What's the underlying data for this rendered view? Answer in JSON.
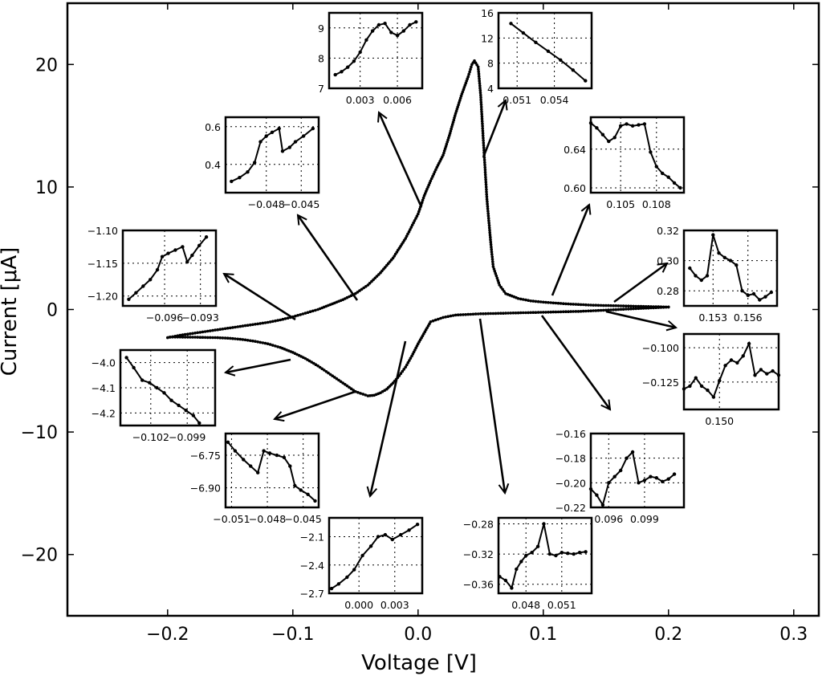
{
  "chart_data": {
    "type": "line",
    "title": "",
    "xlabel": "Voltage [V]",
    "ylabel": "Current [μA]",
    "xlim": [
      -0.28,
      0.32
    ],
    "ylim": [
      -25,
      25
    ],
    "x_ticks": [
      -0.2,
      -0.1,
      0.0,
      0.1,
      0.2,
      0.3
    ],
    "x_tick_labels": [
      "−0.2",
      "−0.1",
      "0.0",
      "0.1",
      "0.2",
      "0.3"
    ],
    "y_ticks": [
      -20,
      -10,
      0,
      10,
      20
    ],
    "y_tick_labels": [
      "−20",
      "−10",
      "0",
      "10",
      "20"
    ],
    "grid": false,
    "legend": "none",
    "series": [
      {
        "x": [
          -0.2,
          -0.19,
          -0.18,
          -0.17,
          -0.16,
          -0.15,
          -0.14,
          -0.13,
          -0.12,
          -0.11,
          -0.1,
          -0.09,
          -0.08,
          -0.07,
          -0.06,
          -0.05,
          -0.04,
          -0.03,
          -0.02,
          -0.01,
          0.0,
          0.005,
          0.01,
          0.015,
          0.02,
          0.025,
          0.03,
          0.035,
          0.04,
          0.043,
          0.045,
          0.048,
          0.05,
          0.052,
          0.055,
          0.058,
          0.06,
          0.065,
          0.07,
          0.08,
          0.09,
          0.1,
          0.12,
          0.14,
          0.16,
          0.18,
          0.2,
          0.2,
          0.19,
          0.17,
          0.15,
          0.13,
          0.11,
          0.09,
          0.07,
          0.05,
          0.03,
          0.02,
          0.01,
          0.0,
          -0.005,
          -0.01,
          -0.015,
          -0.02,
          -0.025,
          -0.03,
          -0.035,
          -0.04,
          -0.05,
          -0.06,
          -0.07,
          -0.08,
          -0.09,
          -0.1,
          -0.11,
          -0.12,
          -0.13,
          -0.14,
          -0.15,
          -0.16,
          -0.17,
          -0.18,
          -0.19,
          -0.2
        ],
        "y": [
          -2.3,
          -2.1,
          -1.95,
          -1.8,
          -1.65,
          -1.5,
          -1.35,
          -1.2,
          -1.05,
          -0.85,
          -0.6,
          -0.3,
          0.0,
          0.4,
          0.8,
          1.3,
          2.0,
          3.0,
          4.2,
          5.8,
          7.8,
          9.3,
          10.5,
          11.6,
          12.6,
          14.2,
          16.0,
          17.6,
          19.0,
          20.0,
          20.3,
          19.8,
          17.5,
          14.0,
          9.0,
          5.5,
          3.5,
          2.0,
          1.3,
          0.9,
          0.7,
          0.6,
          0.45,
          0.35,
          0.3,
          0.25,
          0.2,
          0.2,
          0.15,
          0.05,
          -0.05,
          -0.15,
          -0.2,
          -0.25,
          -0.3,
          -0.35,
          -0.45,
          -0.65,
          -1.0,
          -2.8,
          -3.8,
          -4.7,
          -5.4,
          -6.0,
          -6.5,
          -6.8,
          -7.0,
          -7.05,
          -6.7,
          -6.0,
          -5.3,
          -4.6,
          -4.0,
          -3.5,
          -3.1,
          -2.8,
          -2.6,
          -2.45,
          -2.35,
          -2.3,
          -2.28,
          -2.26,
          -2.25,
          -2.25
        ]
      }
    ],
    "insets": [
      {
        "x_ticks": [
          0.003,
          0.006
        ],
        "x_tick_labels": [
          "0.003",
          "0.006"
        ],
        "y_ticks": [
          7,
          8,
          9
        ],
        "y_tick_labels": [
          "7",
          "8",
          "9"
        ],
        "xlim": [
          0.0005,
          0.008
        ],
        "ylim": [
          7,
          9.5
        ],
        "x": [
          0.001,
          0.0015,
          0.002,
          0.0025,
          0.003,
          0.0035,
          0.004,
          0.0045,
          0.005,
          0.0055,
          0.006,
          0.0065,
          0.007,
          0.0075
        ],
        "y": [
          7.45,
          7.55,
          7.7,
          7.9,
          8.2,
          8.6,
          8.9,
          9.1,
          9.15,
          8.85,
          8.75,
          8.9,
          9.1,
          9.2
        ]
      },
      {
        "x_ticks": [
          0.051,
          0.054
        ],
        "x_tick_labels": [
          "0.051",
          "0.054"
        ],
        "y_ticks": [
          4,
          8,
          12,
          16
        ],
        "y_tick_labels": [
          "4",
          "8",
          "12",
          "16"
        ],
        "xlim": [
          0.0495,
          0.057
        ],
        "ylim": [
          4,
          16
        ],
        "x": [
          0.0505,
          0.0515,
          0.0525,
          0.0535,
          0.0545,
          0.0555,
          0.0565
        ],
        "y": [
          14.3,
          12.8,
          11.3,
          9.9,
          8.5,
          6.9,
          5.2
        ]
      },
      {
        "x_ticks": [
          -0.048,
          -0.045
        ],
        "x_tick_labels": [
          "−0.048",
          "−0.045"
        ],
        "y_ticks": [
          0.4,
          0.6
        ],
        "y_tick_labels": [
          "0.4",
          "0.6"
        ],
        "xlim": [
          -0.0515,
          -0.0435
        ],
        "ylim": [
          0.25,
          0.65
        ],
        "x": [
          -0.051,
          -0.0503,
          -0.0496,
          -0.049,
          -0.0485,
          -0.048,
          -0.0475,
          -0.0469,
          -0.0466,
          -0.046,
          -0.0455,
          -0.0448,
          -0.044
        ],
        "y": [
          0.31,
          0.33,
          0.36,
          0.41,
          0.52,
          0.55,
          0.57,
          0.59,
          0.47,
          0.49,
          0.52,
          0.55,
          0.59
        ]
      },
      {
        "x_ticks": [
          0.105,
          0.108
        ],
        "x_tick_labels": [
          "0.105",
          "0.108"
        ],
        "y_ticks": [
          0.6,
          0.64
        ],
        "y_tick_labels": [
          "0.60",
          "0.64"
        ],
        "xlim": [
          0.1025,
          0.1103
        ],
        "ylim": [
          0.595,
          0.673
        ],
        "x": [
          0.1025,
          0.103,
          0.1035,
          0.104,
          0.1045,
          0.105,
          0.1055,
          0.106,
          0.1065,
          0.107,
          0.1075,
          0.108,
          0.1085,
          0.109,
          0.1095,
          0.11
        ],
        "y": [
          0.667,
          0.662,
          0.655,
          0.648,
          0.652,
          0.664,
          0.666,
          0.664,
          0.665,
          0.666,
          0.637,
          0.622,
          0.615,
          0.611,
          0.605,
          0.6
        ]
      },
      {
        "x_ticks": [
          -0.096,
          -0.093
        ],
        "x_tick_labels": [
          "−0.096",
          "−0.093"
        ],
        "y_ticks": [
          -1.2,
          -1.15,
          -1.1
        ],
        "y_tick_labels": [
          "−1.20",
          "−1.15",
          "−1.10"
        ],
        "xlim": [
          -0.0995,
          -0.0917
        ],
        "ylim": [
          -1.215,
          -1.1
        ],
        "x": [
          -0.099,
          -0.0984,
          -0.0978,
          -0.0972,
          -0.0966,
          -0.0962,
          -0.0957,
          -0.0951,
          -0.0945,
          -0.0941,
          -0.0937,
          -0.0931,
          -0.0925
        ],
        "y": [
          -1.205,
          -1.195,
          -1.185,
          -1.175,
          -1.16,
          -1.14,
          -1.135,
          -1.13,
          -1.125,
          -1.148,
          -1.138,
          -1.123,
          -1.11
        ]
      },
      {
        "x_ticks": [
          0.153,
          0.156
        ],
        "x_tick_labels": [
          "0.153",
          "0.156"
        ],
        "y_ticks": [
          0.28,
          0.3,
          0.32
        ],
        "y_tick_labels": [
          "0.28",
          "0.30",
          "0.32"
        ],
        "xlim": [
          0.1505,
          0.1585
        ],
        "ylim": [
          0.27,
          0.32
        ],
        "x": [
          0.151,
          0.1515,
          0.152,
          0.1525,
          0.153,
          0.1535,
          0.154,
          0.1545,
          0.155,
          0.1555,
          0.156,
          0.1565,
          0.157,
          0.1575,
          0.158
        ],
        "y": [
          0.295,
          0.29,
          0.287,
          0.29,
          0.317,
          0.305,
          0.302,
          0.3,
          0.297,
          0.28,
          0.277,
          0.278,
          0.274,
          0.276,
          0.279
        ]
      },
      {
        "x_ticks": [
          -0.102,
          -0.099
        ],
        "x_tick_labels": [
          "−0.102",
          "−0.099"
        ],
        "y_ticks": [
          -4.2,
          -4.1,
          -4.0
        ],
        "y_tick_labels": [
          "−4.2",
          "−4.1",
          "−4.0"
        ],
        "xlim": [
          -0.1045,
          -0.0967
        ],
        "ylim": [
          -4.25,
          -3.95
        ],
        "x": [
          -0.104,
          -0.1034,
          -0.1027,
          -0.1021,
          -0.1015,
          -0.1009,
          -0.1003,
          -0.0997,
          -0.0991,
          -0.0985,
          -0.098
        ],
        "y": [
          -3.98,
          -4.02,
          -4.07,
          -4.08,
          -4.1,
          -4.12,
          -4.15,
          -4.17,
          -4.19,
          -4.21,
          -4.24
        ]
      },
      {
        "x_ticks": [
          0.15
        ],
        "x_tick_labels": [
          "0.150"
        ],
        "y_ticks": [
          -0.125,
          -0.1
        ],
        "y_tick_labels": [
          "−0.125",
          "−0.100"
        ],
        "xlim": [
          0.147,
          0.155
        ],
        "ylim": [
          -0.145,
          -0.09
        ],
        "x": [
          0.147,
          0.1475,
          0.148,
          0.1485,
          0.149,
          0.1495,
          0.15,
          0.1505,
          0.151,
          0.1515,
          0.152,
          0.1525,
          0.153,
          0.1535,
          0.154,
          0.1545,
          0.155
        ],
        "y": [
          -0.13,
          -0.128,
          -0.122,
          -0.128,
          -0.131,
          -0.136,
          -0.124,
          -0.113,
          -0.109,
          -0.111,
          -0.106,
          -0.097,
          -0.12,
          -0.116,
          -0.119,
          -0.117,
          -0.12
        ]
      },
      {
        "x_ticks": [
          -0.051,
          -0.048,
          -0.045
        ],
        "x_tick_labels": [
          "−0.051",
          "−0.048",
          "−0.045"
        ],
        "y_ticks": [
          -6.9,
          -6.75
        ],
        "y_tick_labels": [
          "−6.90",
          "−6.75"
        ],
        "xlim": [
          -0.0515,
          -0.0437
        ],
        "ylim": [
          -6.99,
          -6.65
        ],
        "x": [
          -0.0513,
          -0.0507,
          -0.05,
          -0.0494,
          -0.0488,
          -0.0483,
          -0.0478,
          -0.0472,
          -0.0466,
          -0.0461,
          -0.0457,
          -0.0452,
          -0.0446,
          -0.044
        ],
        "y": [
          -6.69,
          -6.73,
          -6.77,
          -6.8,
          -6.83,
          -6.73,
          -6.74,
          -6.75,
          -6.76,
          -6.8,
          -6.89,
          -6.91,
          -6.93,
          -6.96
        ]
      },
      {
        "x_ticks": [
          0.096,
          0.099
        ],
        "x_tick_labels": [
          "0.096",
          "0.099"
        ],
        "y_ticks": [
          -0.22,
          -0.2,
          -0.18,
          -0.16
        ],
        "y_tick_labels": [
          "−0.22",
          "−0.20",
          "−0.18",
          "−0.16"
        ],
        "xlim": [
          0.0945,
          0.1023
        ],
        "ylim": [
          -0.22,
          -0.16
        ],
        "x": [
          0.0945,
          0.095,
          0.0955,
          0.096,
          0.0965,
          0.097,
          0.0975,
          0.098,
          0.0985,
          0.099,
          0.0995,
          0.1,
          0.1005,
          0.101,
          0.1015
        ],
        "y": [
          -0.205,
          -0.21,
          -0.218,
          -0.2,
          -0.195,
          -0.19,
          -0.18,
          -0.175,
          -0.2,
          -0.198,
          -0.195,
          -0.196,
          -0.199,
          -0.197,
          -0.193
        ]
      },
      {
        "x_ticks": [
          0.0,
          0.003
        ],
        "x_tick_labels": [
          "0.000",
          "0.003"
        ],
        "y_ticks": [
          -2.7,
          -2.4,
          -2.1
        ],
        "y_tick_labels": [
          "−2.7",
          "−2.4",
          "−2.1"
        ],
        "xlim": [
          -0.0025,
          0.0053
        ],
        "ylim": [
          -2.7,
          -1.9
        ],
        "x": [
          -0.0023,
          -0.0017,
          -0.001,
          -0.0004,
          0.0003,
          0.001,
          0.0016,
          0.0022,
          0.0028,
          0.0035,
          0.0042,
          0.0049
        ],
        "y": [
          -2.65,
          -2.6,
          -2.53,
          -2.45,
          -2.3,
          -2.2,
          -2.1,
          -2.08,
          -2.13,
          -2.08,
          -2.03,
          -1.97
        ]
      },
      {
        "x_ticks": [
          0.048,
          0.051
        ],
        "x_tick_labels": [
          "0.048",
          "0.051"
        ],
        "y_ticks": [
          -0.36,
          -0.32,
          -0.28
        ],
        "y_tick_labels": [
          "−0.36",
          "−0.32",
          "−0.28"
        ],
        "xlim": [
          0.0457,
          0.0535
        ],
        "ylim": [
          -0.372,
          -0.272
        ],
        "x": [
          0.0458,
          0.0463,
          0.0468,
          0.0472,
          0.0476,
          0.048,
          0.0485,
          0.049,
          0.0495,
          0.05,
          0.0505,
          0.051,
          0.0515,
          0.052,
          0.0525,
          0.053
        ],
        "y": [
          -0.35,
          -0.355,
          -0.365,
          -0.34,
          -0.33,
          -0.322,
          -0.318,
          -0.31,
          -0.28,
          -0.32,
          -0.322,
          -0.318,
          -0.319,
          -0.32,
          -0.318,
          -0.317
        ]
      }
    ]
  }
}
